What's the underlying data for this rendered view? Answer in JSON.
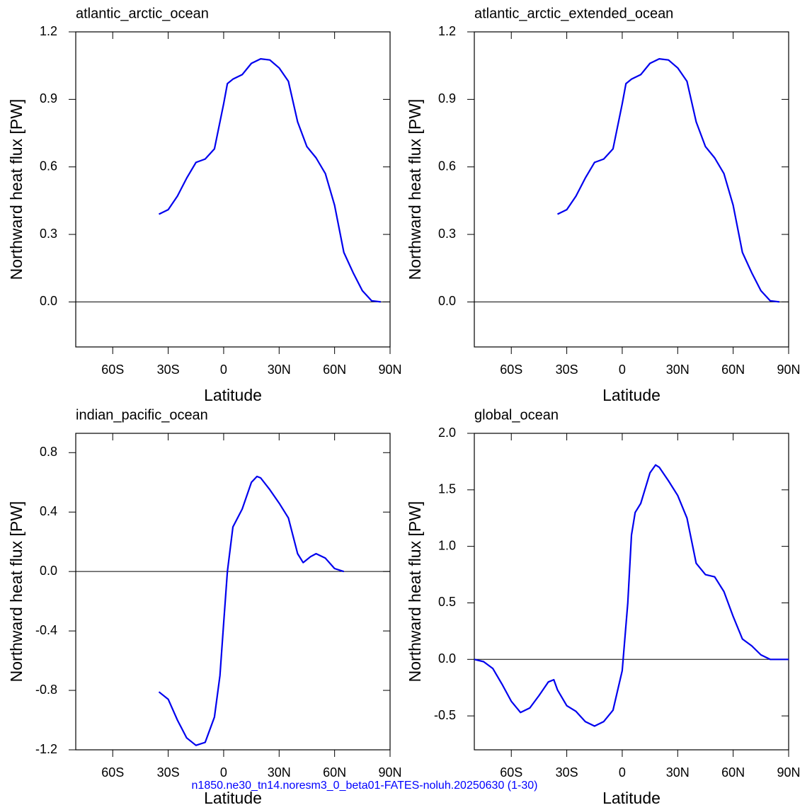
{
  "chart_data": [
    {
      "type": "line",
      "title": "atlantic_arctic_ocean",
      "xlabel": "Latitude",
      "ylabel": "Northward heat flux [PW]",
      "x": [
        -35,
        -30,
        -25,
        -20,
        -15,
        -10,
        -5,
        0,
        2,
        5,
        10,
        15,
        20,
        25,
        30,
        35,
        40,
        45,
        50,
        55,
        60,
        65,
        70,
        75,
        80,
        85
      ],
      "series": [
        {
          "name": "atlantic_arctic_ocean",
          "color": "#0000ee",
          "values": [
            0.39,
            0.41,
            0.47,
            0.55,
            0.62,
            0.635,
            0.68,
            0.88,
            0.97,
            0.99,
            1.01,
            1.06,
            1.08,
            1.075,
            1.04,
            0.98,
            0.8,
            0.69,
            0.64,
            0.57,
            0.43,
            0.22,
            0.13,
            0.05,
            0.005,
            0.0
          ]
        }
      ],
      "xlim": [
        -80,
        90
      ],
      "xticks": [
        {
          "value": -60,
          "label": "60S"
        },
        {
          "value": -30,
          "label": "30S"
        },
        0,
        {
          "value": 30,
          "label": "30N"
        },
        {
          "value": 60,
          "label": "60N"
        },
        {
          "value": 90,
          "label": "90N"
        }
      ],
      "ylim": [
        -0.2,
        1.2
      ],
      "yticks": [
        {
          "value": 0,
          "label": "0.0"
        },
        0.3,
        0.6,
        0.9,
        1.2
      ]
    },
    {
      "type": "line",
      "title": "atlantic_arctic_extended_ocean",
      "xlabel": "Latitude",
      "ylabel": "Northward heat flux [PW]",
      "x": [
        -35,
        -30,
        -25,
        -20,
        -15,
        -10,
        -5,
        0,
        2,
        5,
        10,
        15,
        20,
        25,
        30,
        35,
        40,
        45,
        50,
        55,
        60,
        65,
        70,
        75,
        80,
        85
      ],
      "series": [
        {
          "name": "atlantic_arctic_extended_ocean",
          "color": "#0000ee",
          "values": [
            0.39,
            0.41,
            0.47,
            0.55,
            0.62,
            0.635,
            0.68,
            0.88,
            0.97,
            0.99,
            1.01,
            1.06,
            1.08,
            1.075,
            1.04,
            0.98,
            0.8,
            0.69,
            0.64,
            0.57,
            0.43,
            0.22,
            0.13,
            0.05,
            0.005,
            0.0
          ]
        }
      ],
      "xlim": [
        -80,
        90
      ],
      "xticks": [
        {
          "value": -60,
          "label": "60S"
        },
        {
          "value": -30,
          "label": "30S"
        },
        0,
        {
          "value": 30,
          "label": "30N"
        },
        {
          "value": 60,
          "label": "60N"
        },
        {
          "value": 90,
          "label": "90N"
        }
      ],
      "ylim": [
        -0.2,
        1.2
      ],
      "yticks": [
        {
          "value": 0,
          "label": "0.0"
        },
        0.3,
        0.6,
        0.9,
        1.2
      ]
    },
    {
      "type": "line",
      "title": "indian_pacific_ocean",
      "xlabel": "Latitude",
      "ylabel": "Northward heat flux [PW]",
      "x": [
        -35,
        -30,
        -25,
        -20,
        -15,
        -10,
        -5,
        -2,
        0,
        2,
        5,
        10,
        15,
        18,
        20,
        25,
        30,
        35,
        40,
        43,
        47,
        50,
        55,
        60,
        65
      ],
      "series": [
        {
          "name": "indian_pacific_ocean",
          "color": "#0000ee",
          "values": [
            -0.81,
            -0.86,
            -1.0,
            -1.12,
            -1.17,
            -1.15,
            -0.98,
            -0.7,
            -0.35,
            0.0,
            0.3,
            0.42,
            0.6,
            0.64,
            0.63,
            0.55,
            0.46,
            0.36,
            0.12,
            0.06,
            0.1,
            0.12,
            0.09,
            0.02,
            0.0
          ]
        }
      ],
      "xlim": [
        -80,
        90
      ],
      "xticks": [
        {
          "value": -60,
          "label": "60S"
        },
        {
          "value": -30,
          "label": "30S"
        },
        0,
        {
          "value": 30,
          "label": "30N"
        },
        {
          "value": 60,
          "label": "60N"
        },
        {
          "value": 90,
          "label": "90N"
        }
      ],
      "ylim": [
        -1.2,
        0.93
      ],
      "yticks": [
        -1.2,
        -0.8,
        -0.4,
        {
          "value": 0,
          "label": "0.0"
        },
        0.4,
        0.8
      ]
    },
    {
      "type": "line",
      "title": "global_ocean",
      "xlabel": "Latitude",
      "ylabel": "Northward heat flux [PW]",
      "x": [
        -80,
        -75,
        -70,
        -65,
        -60,
        -55,
        -50,
        -45,
        -40,
        -37,
        -35,
        -30,
        -25,
        -20,
        -15,
        -10,
        -5,
        0,
        3,
        5,
        7,
        10,
        15,
        18,
        20,
        25,
        30,
        35,
        40,
        45,
        50,
        55,
        60,
        65,
        70,
        75,
        80,
        90
      ],
      "series": [
        {
          "name": "global_ocean",
          "color": "#0000ee",
          "values": [
            0.0,
            -0.02,
            -0.08,
            -0.22,
            -0.37,
            -0.47,
            -0.43,
            -0.32,
            -0.2,
            -0.18,
            -0.27,
            -0.41,
            -0.46,
            -0.55,
            -0.59,
            -0.55,
            -0.45,
            -0.1,
            0.5,
            1.1,
            1.3,
            1.38,
            1.65,
            1.72,
            1.7,
            1.58,
            1.45,
            1.25,
            0.85,
            0.75,
            0.73,
            0.6,
            0.38,
            0.18,
            0.12,
            0.04,
            0.0,
            0.0
          ]
        }
      ],
      "xlim": [
        -80,
        90
      ],
      "xticks": [
        {
          "value": -60,
          "label": "60S"
        },
        {
          "value": -30,
          "label": "30S"
        },
        0,
        {
          "value": 30,
          "label": "30N"
        },
        {
          "value": 60,
          "label": "60N"
        },
        {
          "value": 90,
          "label": "90N"
        }
      ],
      "ylim": [
        -0.8,
        2.0
      ],
      "yticks": [
        -0.5,
        {
          "value": 0,
          "label": "0.0"
        },
        0.5,
        {
          "value": 1,
          "label": "1.0"
        },
        1.5,
        {
          "value": 2,
          "label": "2.0"
        }
      ]
    }
  ],
  "footer": "n1850.ne30_tn14.noresm3_0_beta01-FATES-noluh.20250630 (1-30)"
}
